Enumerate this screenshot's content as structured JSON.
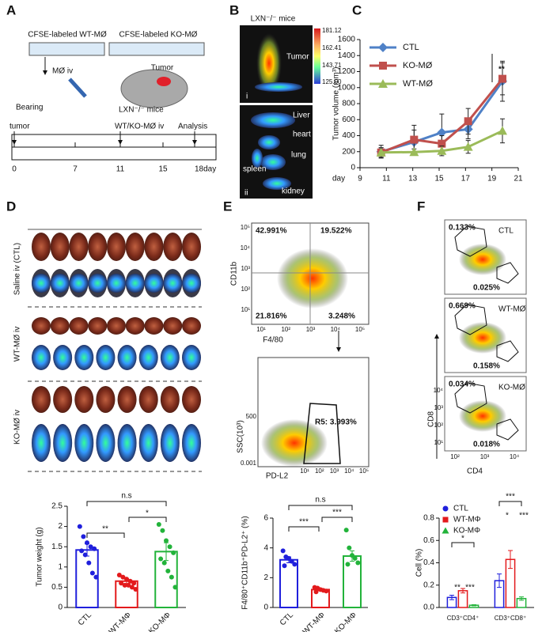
{
  "panels": {
    "A": {
      "label": "A",
      "dish_wt": "CFSE-labeled WT-MØ",
      "dish_ko": "CFSE-labeled KO-MØ",
      "injection": "MØ iv",
      "tumor": "Tumor",
      "bearing": "Bearing",
      "mice": "LXN⁻/⁻ mice",
      "timeline_events": [
        "tumor",
        "WT/KO-MØ iv",
        "Analysis"
      ],
      "timeline_days": [
        "0",
        "7",
        "11",
        "15",
        "18day"
      ]
    },
    "B": {
      "label": "B",
      "mice": "LXN⁻/⁻ mice",
      "colorbar": [
        "181.12",
        "162.41",
        "143.71",
        "125.00"
      ],
      "tumor": "Tumor",
      "view_i": "i",
      "organs": [
        "Liver",
        "heart",
        "lung",
        "kidney",
        "spleen"
      ],
      "view_ii": "ii"
    },
    "C": {
      "label": "C"
    },
    "D": {
      "label": "D",
      "groups": [
        "Saline iv (CTL)",
        "WT-MØ iv",
        "KO-MØ iv"
      ],
      "sig": [
        "n.s",
        "*",
        "**"
      ]
    },
    "E": {
      "label": "E",
      "quadrants": [
        "42.991%",
        "19.522%",
        "21.816%",
        "3.248%"
      ],
      "plot1_y": "CD11b",
      "plot1_x": "F4/80",
      "plot1_yticks": [
        "10⁵",
        "10⁴",
        "10³",
        "10²",
        "10¹"
      ],
      "plot1_xticks": [
        "10¹",
        "10²",
        "10³",
        "10⁴",
        "10⁵"
      ],
      "plot2_y": "SSC(10³)",
      "plot2_x": "PD-L2",
      "plot2_yticks": [
        "500",
        "0.001"
      ],
      "plot2_xticks": [
        "10¹",
        "10²",
        "10³",
        "10⁴",
        "10⁵"
      ],
      "gate": "R5: 3.993%",
      "sig": [
        "n.s",
        "***",
        "***"
      ]
    },
    "F": {
      "label": "F",
      "plots": [
        {
          "top": "0.133%",
          "name": "CTL",
          "bottom": "0.025%"
        },
        {
          "top": "0.669%",
          "name": "WT-MØ",
          "bottom": "0.158%"
        },
        {
          "top": "0.034%",
          "name": "KO-MØ",
          "bottom": "0.018%"
        }
      ],
      "yticks": [
        "10⁴",
        "10³",
        "10²",
        "10¹"
      ],
      "xticks": [
        "10²",
        "10³",
        "10⁴"
      ],
      "y_label": "CD8",
      "x_label": "CD4",
      "sig": [
        "*",
        "**",
        "***",
        "***",
        "*",
        "***"
      ]
    }
  },
  "chart_data": [
    {
      "type": "line",
      "xlabel": "day",
      "ylabel": "Tumor volume (mm³)",
      "x": [
        10.6,
        13.1,
        15.2,
        17.2,
        19.8
      ],
      "xlim": [
        9,
        21
      ],
      "xticks": [
        9,
        11,
        13,
        15,
        17,
        19,
        21
      ],
      "ylim": [
        0,
        1600
      ],
      "yticks": [
        0,
        200,
        400,
        600,
        800,
        1000,
        1200,
        1400,
        1600
      ],
      "legend": "upper left",
      "annotation": "**",
      "series": [
        {
          "name": "CTL",
          "color": "#4f81c7",
          "marker": "diamond",
          "values": [
            200,
            320,
            440,
            480,
            1080
          ],
          "errors": [
            80,
            150,
            230,
            120,
            250
          ]
        },
        {
          "name": "KO-MØ",
          "color": "#c0504d",
          "marker": "square",
          "values": [
            190,
            350,
            300,
            580,
            1110
          ],
          "errors": [
            60,
            180,
            100,
            160,
            200
          ]
        },
        {
          "name": "WT-MØ",
          "color": "#9bbb59",
          "marker": "triangle",
          "values": [
            190,
            195,
            210,
            260,
            460
          ],
          "errors": [
            60,
            40,
            60,
            80,
            150
          ]
        }
      ]
    },
    {
      "type": "bar",
      "ylabel": "Tumor weight (g)",
      "categories": [
        "CTL",
        "WT-MΦ",
        "KO-MΦ"
      ],
      "colors": [
        "#1f1fdc",
        "#e31a1c",
        "#22b33a"
      ],
      "values": [
        1.42,
        0.65,
        1.38
      ],
      "errors": [
        0.15,
        0.06,
        0.22
      ],
      "points": [
        [
          2.0,
          1.75,
          1.6,
          1.5,
          1.45,
          1.4,
          1.3,
          1.1,
          0.85,
          0.75
        ],
        [
          0.8,
          0.75,
          0.7,
          0.65,
          0.6,
          0.6,
          0.55,
          0.55,
          0.5,
          0.45
        ],
        [
          2.05,
          1.9,
          1.65,
          1.5,
          1.35,
          1.2,
          1.1,
          0.9,
          0.75,
          0.5
        ]
      ],
      "ylim": [
        0,
        2.5
      ],
      "yticks": [
        0,
        0.5,
        1,
        1.5,
        2,
        2.5
      ]
    },
    {
      "type": "bar",
      "ylabel": "F4/80⁺CD11b⁺PD-L2⁺ (%)",
      "categories": [
        "CTL",
        "WT-MΦ",
        "KO-MΦ"
      ],
      "colors": [
        "#1f1fdc",
        "#e31a1c",
        "#22b33a"
      ],
      "values": [
        3.2,
        1.2,
        3.45
      ],
      "errors": [
        0.2,
        0.08,
        0.35
      ],
      "points": [
        [
          3.8,
          3.4,
          3.3,
          3.1,
          2.9,
          2.8
        ],
        [
          1.35,
          1.3,
          1.2,
          1.15,
          1.1,
          1.05
        ],
        [
          5.2,
          4.0,
          3.5,
          3.3,
          3.0,
          2.9
        ]
      ],
      "ylim": [
        0,
        6
      ],
      "yticks": [
        0,
        2,
        4,
        6
      ]
    },
    {
      "type": "groupbar",
      "ylabel": "Cell (%)",
      "categories": [
        "CD3⁺CD4⁺",
        "CD3⁺CD8⁺"
      ],
      "legend": "upper left",
      "ylim": [
        0,
        0.8
      ],
      "yticks": [
        {
          "value": 0,
          "label": "0.0"
        },
        0.2,
        0.4,
        0.6,
        0.8
      ],
      "series": [
        {
          "name": "CTL",
          "color": "#1f1fdc",
          "marker": "circle",
          "values": [
            0.09,
            0.24
          ],
          "errors": [
            0.02,
            0.06
          ]
        },
        {
          "name": "WT-MΦ",
          "color": "#e31a1c",
          "marker": "square",
          "values": [
            0.15,
            0.43
          ],
          "errors": [
            0.02,
            0.08
          ]
        },
        {
          "name": "KO-MΦ",
          "color": "#22b33a",
          "marker": "triangle",
          "values": [
            0.02,
            0.08
          ],
          "errors": [
            0.005,
            0.015
          ]
        }
      ]
    }
  ]
}
